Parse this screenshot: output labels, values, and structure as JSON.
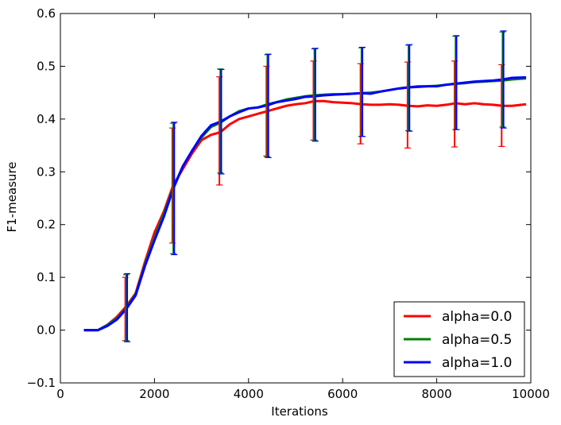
{
  "chart_data": {
    "type": "line",
    "xlabel": "Iterations",
    "ylabel": "F1-measure",
    "xlim": [
      0,
      10000
    ],
    "ylim": [
      -0.1,
      0.6
    ],
    "x_ticks": [
      0,
      2000,
      4000,
      6000,
      8000,
      10000
    ],
    "y_ticks": [
      -0.1,
      0.0,
      0.1,
      0.2,
      0.3,
      0.4,
      0.5,
      0.6
    ],
    "x_tick_labels": [
      "0",
      "2000",
      "4000",
      "6000",
      "8000",
      "10000"
    ],
    "y_tick_labels": [
      "−0.1",
      "0.0",
      "0.1",
      "0.2",
      "0.3",
      "0.4",
      "0.5",
      "0.6"
    ],
    "grid": false,
    "legend_position": "lower-right",
    "series": [
      {
        "name": "alpha=0.0",
        "color": "#ff0000",
        "x": [
          500,
          800,
          1000,
          1200,
          1400,
          1600,
          1800,
          2000,
          2200,
          2400,
          2600,
          2800,
          3000,
          3200,
          3400,
          3600,
          3800,
          4000,
          4200,
          4400,
          4600,
          4800,
          5000,
          5200,
          5400,
          5600,
          5800,
          6000,
          6200,
          6400,
          6600,
          6800,
          7000,
          7200,
          7400,
          7600,
          7800,
          8000,
          8200,
          8400,
          8600,
          8800,
          9000,
          9200,
          9400,
          9600,
          9900
        ],
        "y": [
          0.0,
          0.0,
          0.01,
          0.025,
          0.045,
          0.07,
          0.13,
          0.185,
          0.225,
          0.275,
          0.305,
          0.335,
          0.36,
          0.37,
          0.375,
          0.39,
          0.4,
          0.405,
          0.41,
          0.415,
          0.42,
          0.425,
          0.428,
          0.43,
          0.434,
          0.434,
          0.432,
          0.431,
          0.43,
          0.428,
          0.427,
          0.427,
          0.428,
          0.427,
          0.425,
          0.424,
          0.426,
          0.425,
          0.427,
          0.43,
          0.428,
          0.43,
          0.428,
          0.427,
          0.425,
          0.425,
          0.428
        ],
        "error_x": [
          1380,
          2380,
          3380,
          4380,
          5380,
          6380,
          7380,
          8380,
          9380
        ],
        "error_low": [
          -0.02,
          0.165,
          0.275,
          0.33,
          0.36,
          0.353,
          0.345,
          0.347,
          0.348
        ],
        "error_high": [
          0.1,
          0.383,
          0.48,
          0.5,
          0.51,
          0.505,
          0.508,
          0.51,
          0.503
        ]
      },
      {
        "name": "alpha=0.5",
        "color": "#008000",
        "x": [
          500,
          800,
          1000,
          1200,
          1400,
          1600,
          1800,
          2000,
          2200,
          2400,
          2600,
          2800,
          3000,
          3200,
          3400,
          3600,
          3800,
          4000,
          4200,
          4400,
          4600,
          4800,
          5000,
          5200,
          5400,
          5600,
          5800,
          6000,
          6200,
          6400,
          6600,
          6800,
          7000,
          7200,
          7400,
          7600,
          7800,
          8000,
          8200,
          8400,
          8600,
          8800,
          9000,
          9200,
          9400,
          9600,
          9900
        ],
        "y": [
          0.0,
          0.0,
          0.01,
          0.022,
          0.042,
          0.068,
          0.125,
          0.175,
          0.22,
          0.27,
          0.31,
          0.34,
          0.365,
          0.385,
          0.393,
          0.405,
          0.415,
          0.42,
          0.422,
          0.428,
          0.432,
          0.437,
          0.44,
          0.443,
          0.445,
          0.446,
          0.447,
          0.447,
          0.448,
          0.449,
          0.45,
          0.452,
          0.455,
          0.458,
          0.46,
          0.462,
          0.462,
          0.463,
          0.465,
          0.467,
          0.468,
          0.47,
          0.471,
          0.472,
          0.473,
          0.475,
          0.477
        ],
        "error_x": [
          1400,
          2400,
          3400,
          4400,
          5400,
          6400,
          7400,
          8400,
          9400
        ],
        "error_low": [
          -0.02,
          0.145,
          0.298,
          0.328,
          0.36,
          0.367,
          0.378,
          0.38,
          0.385
        ],
        "error_high": [
          0.105,
          0.392,
          0.495,
          0.522,
          0.533,
          0.535,
          0.54,
          0.557,
          0.565
        ]
      },
      {
        "name": "alpha=1.0",
        "color": "#0000ff",
        "x": [
          500,
          800,
          1000,
          1200,
          1400,
          1600,
          1800,
          2000,
          2200,
          2400,
          2600,
          2800,
          3000,
          3200,
          3400,
          3600,
          3800,
          4000,
          4200,
          4400,
          4600,
          4800,
          5000,
          5200,
          5400,
          5600,
          5800,
          6000,
          6200,
          6400,
          6600,
          6800,
          7000,
          7200,
          7400,
          7600,
          7800,
          8000,
          8200,
          8400,
          8600,
          8800,
          9000,
          9200,
          9400,
          9600,
          9900
        ],
        "y": [
          0.0,
          0.0,
          0.008,
          0.02,
          0.04,
          0.066,
          0.122,
          0.17,
          0.215,
          0.268,
          0.31,
          0.34,
          0.368,
          0.388,
          0.395,
          0.405,
          0.413,
          0.42,
          0.422,
          0.426,
          0.432,
          0.435,
          0.438,
          0.442,
          0.443,
          0.445,
          0.446,
          0.447,
          0.448,
          0.449,
          0.448,
          0.452,
          0.455,
          0.458,
          0.46,
          0.461,
          0.462,
          0.462,
          0.465,
          0.467,
          0.469,
          0.471,
          0.472,
          0.473,
          0.475,
          0.478,
          0.479
        ],
        "error_x": [
          1420,
          2420,
          3420,
          4420,
          5420,
          6420,
          7420,
          8420,
          9420
        ],
        "error_low": [
          -0.022,
          0.143,
          0.296,
          0.327,
          0.358,
          0.367,
          0.377,
          0.38,
          0.383
        ],
        "error_high": [
          0.107,
          0.394,
          0.494,
          0.523,
          0.534,
          0.536,
          0.541,
          0.558,
          0.567
        ]
      }
    ]
  }
}
